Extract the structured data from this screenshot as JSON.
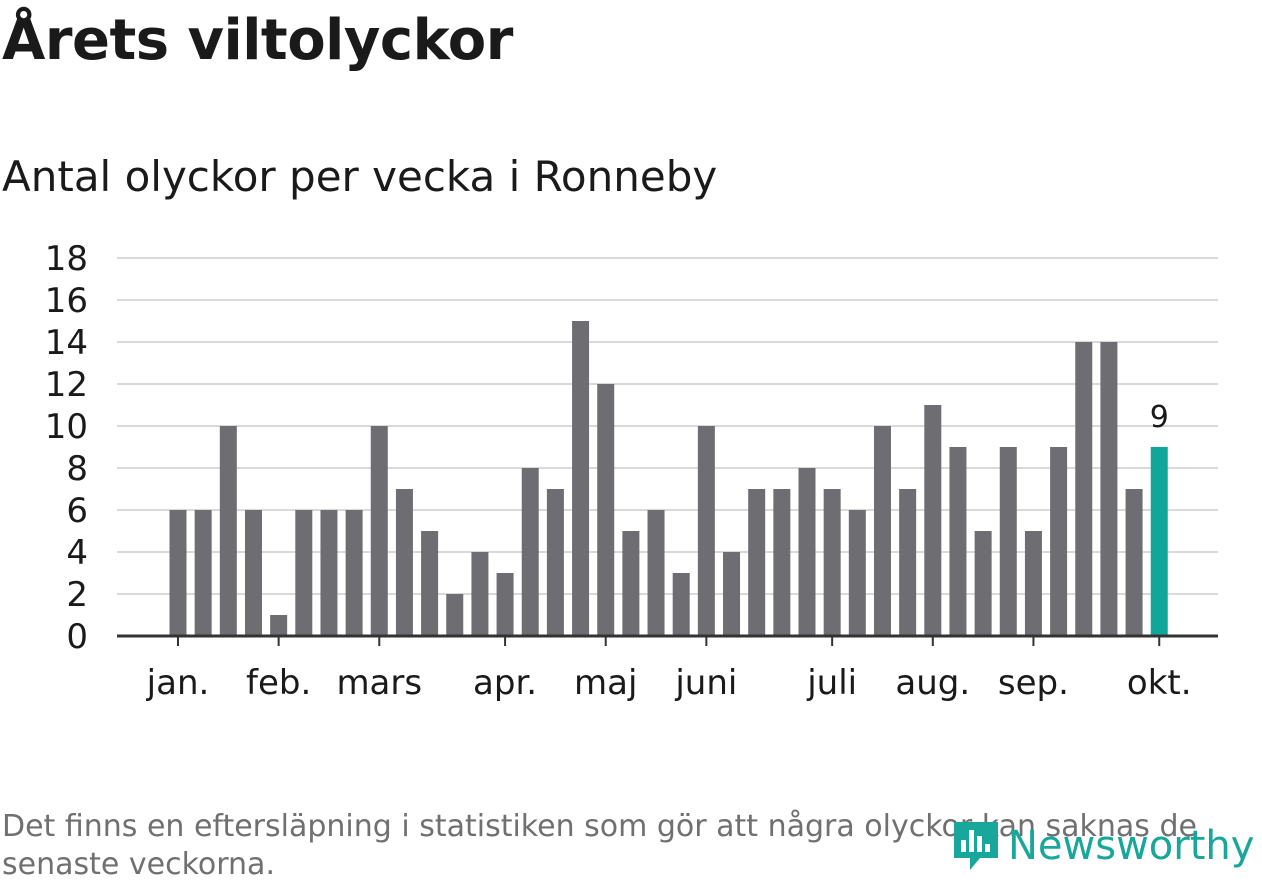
{
  "header": {
    "title": "Årets viltolyckor",
    "subtitle": "Antal olyckor per vecka i Ronneby"
  },
  "footer": {
    "note": "Det finns en eftersläpning i statistiken som gör att några olyckor kan saknas de senaste veckorna.",
    "brand": "Newsworthy"
  },
  "colors": {
    "bar": "#6e6d72",
    "highlight": "#10a69a",
    "grid": "#d9d9d9",
    "axis": "#333333"
  },
  "chart_data": {
    "type": "bar",
    "title": "Årets viltolyckor",
    "subtitle": "Antal olyckor per vecka i Ronneby",
    "xlabel": "",
    "ylabel": "",
    "ylim": [
      0,
      18
    ],
    "yticks": [
      0,
      2,
      4,
      6,
      8,
      10,
      12,
      14,
      16,
      18
    ],
    "grid": true,
    "values": [
      6,
      6,
      10,
      6,
      1,
      6,
      6,
      6,
      10,
      7,
      5,
      2,
      4,
      3,
      8,
      7,
      15,
      12,
      5,
      6,
      3,
      10,
      4,
      7,
      7,
      8,
      7,
      6,
      10,
      7,
      11,
      9,
      5,
      9,
      5,
      9,
      14,
      14,
      7,
      9
    ],
    "highlight_index": 39,
    "data_labels": [
      {
        "index": 39,
        "text": "9"
      }
    ],
    "month_labels": [
      {
        "label": "jan.",
        "week_index": 0
      },
      {
        "label": "feb.",
        "week_index": 4
      },
      {
        "label": "mars",
        "week_index": 8
      },
      {
        "label": "apr.",
        "week_index": 13
      },
      {
        "label": "maj",
        "week_index": 17
      },
      {
        "label": "juni",
        "week_index": 21
      },
      {
        "label": "juli",
        "week_index": 26
      },
      {
        "label": "aug.",
        "week_index": 30
      },
      {
        "label": "sep.",
        "week_index": 34
      },
      {
        "label": "okt.",
        "week_index": 39
      }
    ]
  }
}
